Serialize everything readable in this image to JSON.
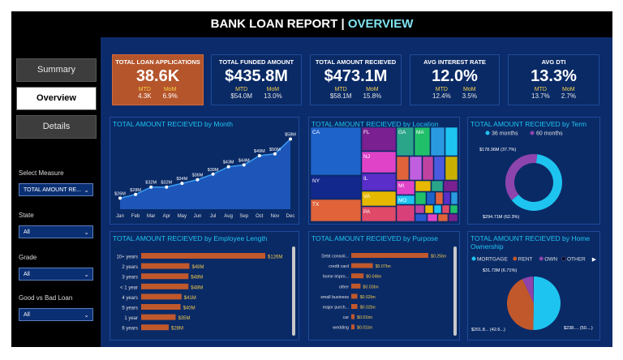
{
  "header": {
    "title_main": "BANK LOAN REPORT | ",
    "title_accent": "OVERVIEW"
  },
  "nav": {
    "items": [
      {
        "label": "Summary"
      },
      {
        "label": "Overview"
      },
      {
        "label": "Details"
      }
    ]
  },
  "filters": {
    "measure_label": "Select Measure",
    "measure_value": "TOTAL AMOUNT RE...",
    "state_label": "State",
    "state_value": "All",
    "grade_label": "Grade",
    "grade_value": "All",
    "goodbad_label": "Good vs Bad Loan",
    "goodbad_value": "All"
  },
  "kpis": [
    {
      "title": "TOTAL LOAN APPLICATIONS",
      "value": "38.6K",
      "mtd_label": "MTD",
      "mtd": "4.3K",
      "mom_label": "MoM",
      "mom": "6.9%"
    },
    {
      "title": "TOTAL FUNDED AMOUNT",
      "value": "$435.8M",
      "mtd_label": "MTD",
      "mtd": "$54.0M",
      "mom_label": "MoM",
      "mom": "13.0%"
    },
    {
      "title": "TOTAL AMOUNT RECIEVED",
      "value": "$473.1M",
      "mtd_label": "MTD",
      "mtd": "$58.1M",
      "mom_label": "MoM",
      "mom": "15.8%"
    },
    {
      "title": "AVG INTEREST RATE",
      "value": "12.0%",
      "mtd_label": "MTD",
      "mtd": "12.4%",
      "mom_label": "MoM",
      "mom": "3.5%"
    },
    {
      "title": "AVG DTI",
      "value": "13.3%",
      "mtd_label": "MTD",
      "mtd": "13.7%",
      "mom_label": "MoM",
      "mom": "2.7%"
    }
  ],
  "panels": {
    "month": "TOTAL AMOUNT RECIEVED by Month",
    "location": "TOTAL AMOUNT RECIEVED by Location",
    "term": "TOTAL AMOUNT RECIEVED by Term",
    "emp": "TOTAL AMOUNT RECIEVED by Employee Length",
    "purpose": "TOTAL AMOUNT RECIEVED by Purpose",
    "home": "TOTAL AMOUNT RECIEVED by Home Ownership"
  },
  "colors": {
    "accent": "#1ec4f0",
    "highlight": "#b5552b",
    "bar": "#c0582c",
    "line": "#2f8be0",
    "panel": "#0a2a66"
  },
  "chart_data": [
    {
      "id": "month",
      "type": "area",
      "categories": [
        "Jan",
        "Feb",
        "Mar",
        "Apr",
        "May",
        "Jun",
        "Jul",
        "Aug",
        "Sep",
        "Oct",
        "Nov",
        "Dec"
      ],
      "values": [
        26,
        28,
        32,
        32,
        34,
        36,
        39,
        43,
        44,
        49,
        50,
        58
      ],
      "labels": [
        "$26M",
        "$28M",
        "$32M",
        "$32M",
        "$34M",
        "$36M",
        "$39M",
        "$43M",
        "$44M",
        "$49M",
        "$50M",
        "$58M"
      ],
      "ylim": [
        20,
        60
      ]
    },
    {
      "id": "location",
      "type": "treemap",
      "labels": [
        "CA",
        "FL",
        "GA",
        "MA",
        "NY",
        "NJ",
        "IL",
        "VA",
        "PA",
        "TX",
        "MI",
        "MO"
      ]
    },
    {
      "id": "term",
      "type": "pie",
      "series": [
        {
          "name": "36 months",
          "value": 294.71,
          "label": "$294.71M (62.3%)",
          "color": "#1ec4f0"
        },
        {
          "name": "60 months",
          "value": 178.36,
          "label": "$178.36M (37.7%)",
          "color": "#8e44ad"
        }
      ]
    },
    {
      "id": "emp",
      "type": "bar",
      "categories": [
        "10+ years",
        "2 years",
        "3 years",
        "< 1 year",
        "4 years",
        "5 years",
        "1 year",
        "6 years"
      ],
      "values": [
        126,
        49,
        48,
        48,
        41,
        40,
        35,
        28
      ],
      "labels": [
        "$126M",
        "$49M",
        "$48M",
        "$48M",
        "$41M",
        "$40M",
        "$35M",
        "$28M"
      ]
    },
    {
      "id": "purpose",
      "type": "bar",
      "categories": [
        "Debt consoli...",
        "credit card",
        "home impro...",
        "other",
        "small business",
        "major purch...",
        "car",
        "wedding"
      ],
      "values": [
        0.25,
        0.07,
        0.04,
        0.03,
        0.02,
        0.02,
        0.01,
        0.01
      ],
      "labels": [
        "$0.25bn",
        "$0.07bn",
        "$0.04bn",
        "$0.03bn",
        "$0.02bn",
        "$0.02bn",
        "$0.01bn",
        "$0.01bn"
      ]
    },
    {
      "id": "home",
      "type": "pie",
      "series": [
        {
          "name": "MORTGAGE",
          "value": 238,
          "label": "$238.... (50....)",
          "color": "#1ec4f0"
        },
        {
          "name": "RENT",
          "value": 201.8,
          "label": "$201.8... (42.6...)",
          "color": "#c0582c"
        },
        {
          "name": "OWN",
          "value": 31.73,
          "label": "$31.73M (6.71%)",
          "color": "#8e44ad"
        },
        {
          "name": "OTHER",
          "value": 1.5,
          "label": "",
          "color": "#1c1c3c"
        }
      ]
    }
  ]
}
